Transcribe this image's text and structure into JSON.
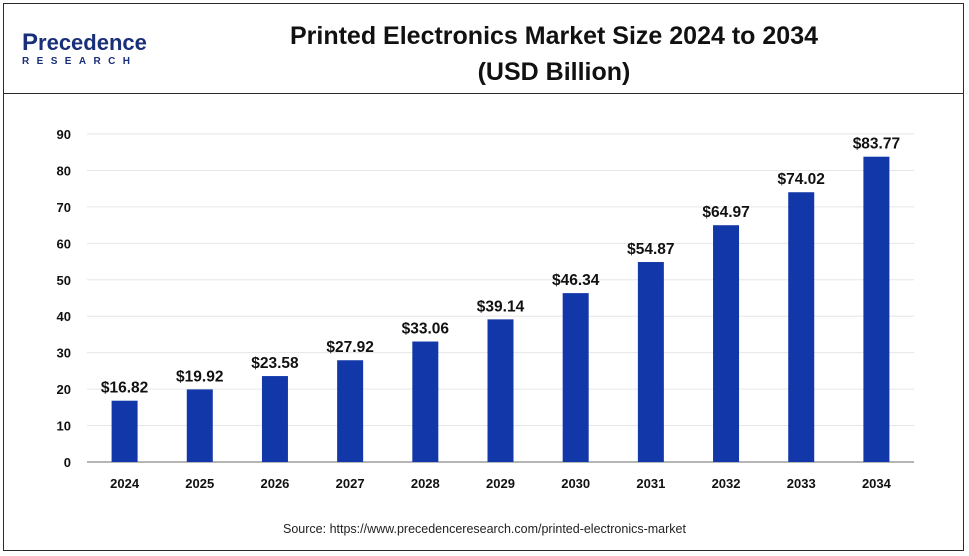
{
  "logo": {
    "brand_initial": "P",
    "brand_rest": "recedence",
    "sub": "RESEARCH",
    "color": "#1a2f7a"
  },
  "header": {
    "title_line1": "Printed Electronics Market Size 2024 to 2034",
    "title_line2": "(USD Billion)"
  },
  "chart_data": {
    "type": "bar",
    "title": "Printed Electronics Market Size 2024 to 2034 (USD Billion)",
    "xlabel": "",
    "ylabel": "",
    "categories": [
      "2024",
      "2025",
      "2026",
      "2027",
      "2028",
      "2029",
      "2030",
      "2031",
      "2032",
      "2033",
      "2034"
    ],
    "values": [
      16.82,
      19.92,
      23.58,
      27.92,
      33.06,
      39.14,
      46.34,
      54.87,
      64.97,
      74.02,
      83.77
    ],
    "data_labels": [
      "$16.82",
      "$19.92",
      "$23.58",
      "$27.92",
      "$33.06",
      "$39.14",
      "$46.34",
      "$54.87",
      "$64.97",
      "$74.02",
      "$83.77"
    ],
    "ylim": [
      0,
      90
    ],
    "yticks": [
      0,
      10,
      20,
      30,
      40,
      50,
      60,
      70,
      80,
      90
    ],
    "grid": true,
    "legend": "none",
    "bar_color": "#1237a8"
  },
  "footer": {
    "source": "Source: https://www.precedenceresearch.com/printed-electronics-market"
  }
}
